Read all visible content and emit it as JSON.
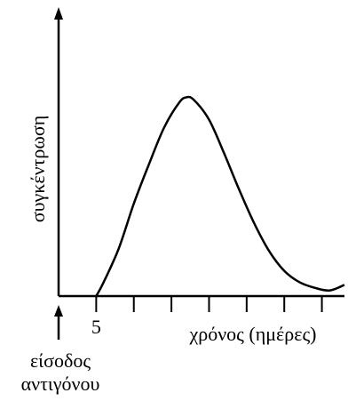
{
  "chart_data": {
    "type": "line",
    "xlabel": "χρόνος (ημέρες)",
    "ylabel": "συγκέντρωση",
    "x_tick_labels": [
      {
        "x": 5,
        "label": "5"
      }
    ],
    "x_ticks": [
      5,
      10,
      15,
      20,
      25,
      30,
      35
    ],
    "xlim": [
      0,
      38
    ],
    "ylim": [
      0,
      1
    ],
    "annotation": {
      "x": 0,
      "text_line1": "είσοδος",
      "text_line2": "αντιγόνου"
    },
    "series": [
      {
        "x": [
          5,
          6,
          8,
          10,
          12,
          14,
          16,
          17,
          18,
          20,
          22,
          24,
          26,
          28,
          30,
          32,
          34,
          36,
          38
        ],
        "y": [
          0,
          0.05,
          0.17,
          0.33,
          0.47,
          0.6,
          0.69,
          0.71,
          0.7,
          0.63,
          0.51,
          0.38,
          0.26,
          0.16,
          0.09,
          0.05,
          0.03,
          0.02,
          0.04
        ]
      }
    ]
  },
  "colors": {
    "line": "#000000",
    "background": "#ffffff"
  }
}
